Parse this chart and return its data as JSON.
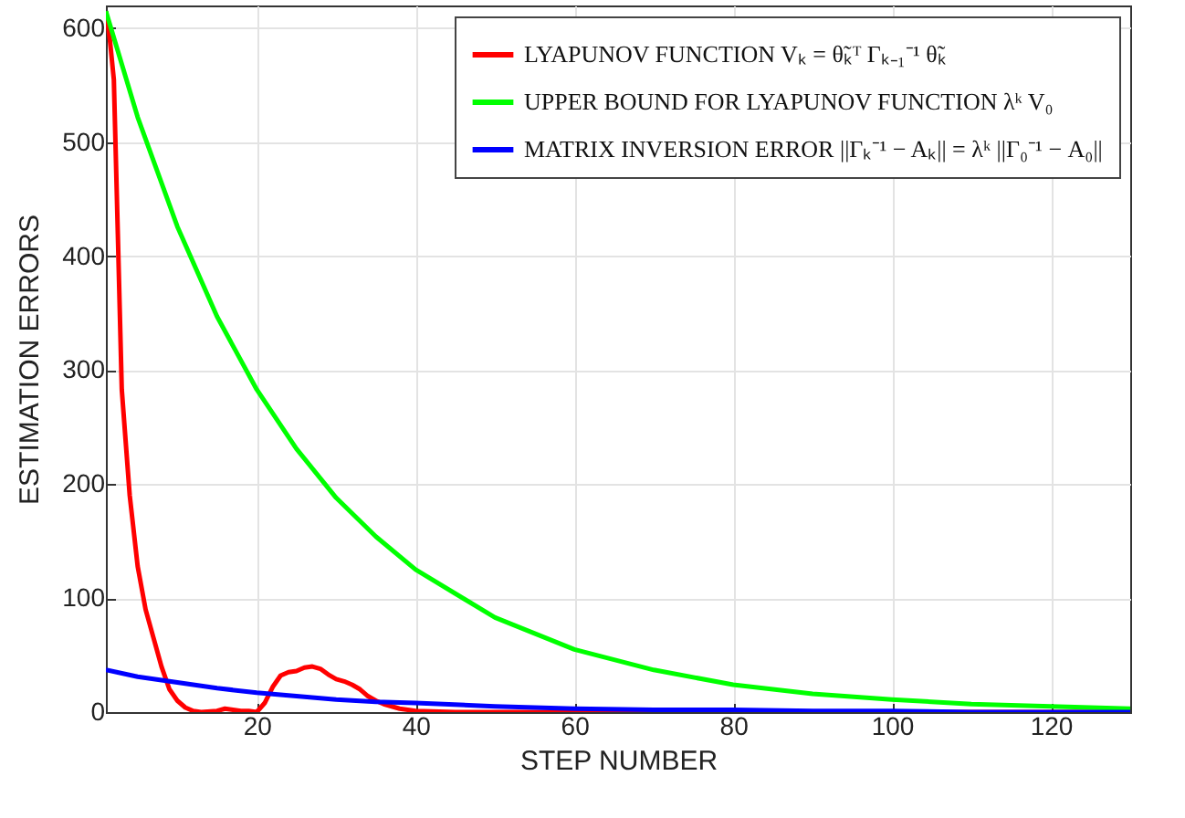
{
  "chart_data": {
    "type": "line",
    "xlabel": "STEP NUMBER",
    "ylabel": "ESTIMATION ERRORS",
    "xlim": [
      1,
      130
    ],
    "ylim": [
      0,
      620
    ],
    "xticks": [
      20,
      40,
      60,
      80,
      100,
      120
    ],
    "yticks": [
      0,
      100,
      200,
      300,
      400,
      500,
      600
    ],
    "grid": true,
    "legend": "top right",
    "series": [
      {
        "name": "LYAPUNOV FUNCTION  Vₖ = θ̃ₖᵀ Γₖ₋₁⁻¹ θ̃ₖ",
        "color": "#ff0000",
        "x": [
          1,
          1.5,
          2,
          2.5,
          3,
          4,
          5,
          6,
          7,
          8,
          9,
          10,
          11,
          12,
          13,
          15,
          16,
          17,
          18,
          19,
          20,
          21,
          22,
          23,
          24,
          25,
          26,
          27,
          28,
          29,
          30,
          31,
          32,
          33,
          34,
          35,
          36,
          38,
          40,
          45,
          60,
          130
        ],
        "values": [
          615,
          590,
          555,
          420,
          283,
          190,
          128,
          90,
          65,
          40,
          20,
          10,
          4,
          1,
          0,
          1,
          3,
          2,
          1,
          1,
          0,
          8,
          22,
          32,
          35,
          36,
          39,
          40,
          38,
          33,
          29,
          27,
          24,
          20,
          14,
          10,
          7,
          3,
          1,
          0,
          0,
          0
        ]
      },
      {
        "name": "UPPER BOUND FOR LYAPUNOV FUNCTION λᵏ V₀",
        "color": "#00ff00",
        "x": [
          1,
          5,
          10,
          15,
          20,
          25,
          30,
          35,
          40,
          50,
          60,
          70,
          80,
          90,
          100,
          110,
          120,
          130
        ],
        "values": [
          615,
          522,
          426,
          347,
          283,
          231,
          188,
          154,
          125,
          83,
          55,
          37,
          24,
          16,
          11,
          7,
          5,
          3
        ]
      },
      {
        "name": "MATRIX INVERSION ERROR ||Γₖ⁻¹ − Aₖ|| = λᵏ ||Γ₀⁻¹ − A₀||",
        "color": "#0000ff",
        "x": [
          1,
          5,
          10,
          15,
          20,
          25,
          30,
          35,
          40,
          50,
          60,
          70,
          80,
          90,
          100,
          110,
          120,
          130
        ],
        "values": [
          37,
          31,
          26,
          21,
          17,
          14,
          11,
          9,
          8,
          5,
          3,
          2,
          2,
          1,
          1,
          0,
          0,
          0
        ]
      }
    ]
  }
}
